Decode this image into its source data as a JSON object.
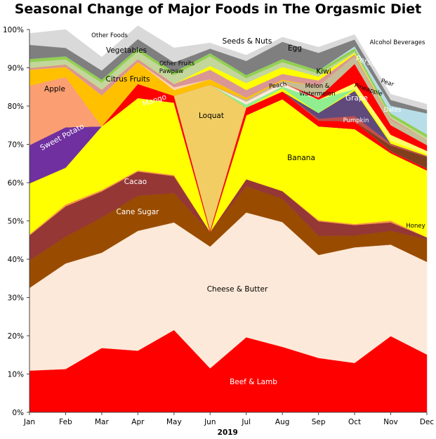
{
  "chart_data": {
    "type": "area",
    "stacked": true,
    "title": "Seasonal Change of Major Foods in The Orgasmic Diet",
    "xlabel": "2019",
    "ylabel": "",
    "categories": [
      "Jan",
      "Feb",
      "Mar",
      "Apr",
      "May",
      "Jun",
      "Jul",
      "Aug",
      "Sep",
      "Oct",
      "Nov",
      "Dec"
    ],
    "ylim": [
      0,
      100
    ],
    "yticks": [
      "0%",
      "10%",
      "20%",
      "30%",
      "40%",
      "50%",
      "60%",
      "70%",
      "80%",
      "90%",
      "100%"
    ],
    "grid": false,
    "legend": "none (inline labels)",
    "series": [
      {
        "name": "Beef & Lamb",
        "color": "#ff0000",
        "label_color": "#ffffff",
        "values": [
          10.9,
          11.3,
          16.8,
          16.1,
          21.5,
          11.5,
          19.6,
          17.1,
          14.2,
          12.9,
          19.9,
          15.1
        ]
      },
      {
        "name": "Cheese & Butter",
        "color": "#fde9d9",
        "label_color": "#000000",
        "values": [
          21.6,
          27.6,
          24.9,
          31.3,
          28.1,
          31.8,
          32.6,
          32.6,
          26.9,
          30.2,
          23.9,
          24.2
        ]
      },
      {
        "name": "Cane Sugar",
        "color": "#994c00",
        "label_color": "#ffffff",
        "values": [
          7.2,
          7.0,
          9.2,
          9.2,
          7.7,
          3.7,
          6.9,
          6.1,
          5.0,
          3.1,
          3.6,
          5.9
        ]
      },
      {
        "name": "Cacao",
        "color": "#953735",
        "label_color": "#ffffff",
        "values": [
          6.5,
          7.9,
          6.8,
          6.3,
          4.4,
          0.1,
          1.8,
          2.0,
          3.8,
          2.7,
          2.2,
          0.5
        ]
      },
      {
        "name": "Honey",
        "color": "#f79646",
        "label_color": "#000000",
        "values": [
          0.3,
          0.5,
          0.4,
          0.3,
          0.3,
          0,
          0,
          0,
          0.3,
          0.3,
          0.5,
          0
        ]
      },
      {
        "name": "Banana",
        "color": "#ffff00",
        "label_color": "#000000",
        "values": [
          13.3,
          9.6,
          16.6,
          18.9,
          18.9,
          0,
          16.7,
          24.0,
          24.5,
          24.8,
          17.6,
          17.5
        ]
      },
      {
        "name": "Sweet Potato",
        "color": "#7030a0",
        "label_color": "#ffffff",
        "values": [
          10.0,
          10.6,
          0,
          0,
          0,
          0,
          0,
          0,
          0,
          0,
          0,
          0
        ]
      },
      {
        "name": "Mango",
        "color": "#ff0000",
        "label_color": "#ffffff",
        "values": [
          0,
          0,
          0,
          3.7,
          1.8,
          0.5,
          2.0,
          2.0,
          1.5,
          2.0,
          0.5,
          0.5
        ]
      },
      {
        "name": "Loquat",
        "color": "#f2cd64",
        "label_color": "#000000",
        "values": [
          0,
          0,
          0,
          0,
          0,
          38.0,
          0,
          0,
          0,
          0,
          0,
          0
        ]
      },
      {
        "name": "Dates",
        "color": "#7f3f1e",
        "label_color": "#ffffff",
        "values": [
          0,
          0,
          0,
          0,
          0,
          0,
          0,
          0,
          0,
          0,
          1.5,
          3.0
        ]
      },
      {
        "name": "Pumpkin",
        "color": "#c0504d",
        "label_color": "#ffffff",
        "values": [
          0,
          0,
          0,
          0,
          0,
          0,
          0,
          0,
          0.5,
          1.4,
          0.5,
          0.3
        ]
      },
      {
        "name": "Grape",
        "color": "#604a7b",
        "label_color": "#ffffff",
        "values": [
          0,
          0,
          0,
          0,
          0,
          0,
          0,
          0,
          1.5,
          6.6,
          0,
          0
        ]
      },
      {
        "name": "Pineapple",
        "color": "#ffff00",
        "label_color": "#000000",
        "values": [
          0,
          0,
          0,
          0,
          0,
          0,
          0,
          0.8,
          0,
          0.5,
          0.8,
          0.5
        ]
      },
      {
        "name": "Melon & Watermelon",
        "color": "#90ee90",
        "label_color": "#000000",
        "values": [
          0,
          0,
          0,
          0,
          0,
          0,
          0.8,
          0.5,
          3.5,
          0,
          0,
          0
        ]
      },
      {
        "name": "Peach",
        "color": "#fde9d9",
        "label_color": "#000000",
        "values": [
          0,
          0,
          0,
          0,
          0,
          0,
          0.8,
          1.0,
          0,
          0,
          0,
          0
        ]
      },
      {
        "name": "Pear",
        "color": "#ffff66",
        "label_color": "#000000",
        "values": [
          0,
          0,
          0,
          0,
          0,
          0,
          0,
          0,
          0,
          1.5,
          1.5,
          0.8
        ]
      },
      {
        "name": "Persimmon",
        "color": "#ff0000",
        "label_color": "#ffffff",
        "values": [
          0,
          0,
          0,
          0,
          0,
          0,
          0,
          0,
          0.5,
          5.0,
          2.5,
          1.5
        ]
      },
      {
        "name": "Kiwi",
        "color": "#c4bd97",
        "label_color": "#000000",
        "values": [
          0,
          0,
          0,
          0,
          0,
          0,
          0.5,
          0.5,
          3.0,
          2.0,
          1.3,
          1.5
        ]
      },
      {
        "name": "Apple",
        "color": "#fb9e72",
        "label_color": "#000000",
        "values": [
          15.5,
          13.1,
          0,
          0,
          0,
          0,
          0,
          0,
          0,
          0,
          0,
          0
        ]
      },
      {
        "name": "Citrus Fruits",
        "color": "#ffc000",
        "label_color": "#000000",
        "values": [
          4.2,
          2.6,
          8.1,
          5.7,
          1.5,
          0,
          0.5,
          0.3,
          0,
          0,
          0,
          0
        ]
      },
      {
        "name": "Other Fruits",
        "color": "#ffc000",
        "label_color": "#000000",
        "values": [
          0,
          0,
          0,
          0,
          0,
          1.4,
          0,
          0,
          0,
          0,
          0,
          0
        ]
      },
      {
        "name": "Pawpaw",
        "color": "#fbd5b5",
        "label_color": "#000000",
        "values": [
          0,
          0,
          0,
          0,
          0.7,
          0,
          0,
          0,
          0,
          0,
          0,
          0
        ]
      },
      {
        "name": "Other Fruits",
        "color": "#d99694",
        "label_color": "#000000",
        "values": [
          0.5,
          0.7,
          1.5,
          0.8,
          0.9,
          2.5,
          2.0,
          1.5,
          1.5,
          0.5,
          0.5,
          0
        ]
      },
      {
        "name": "Egg",
        "color": "#ffff00",
        "label_color": "#000000",
        "values": [
          0,
          0,
          0,
          0,
          0,
          1.0,
          1.8,
          1.8,
          1.0,
          0.4,
          0,
          0
        ]
      },
      {
        "name": "Vegetables",
        "color": "#c3d69b",
        "label_color": "#000000",
        "values": [
          1.5,
          1.3,
          1.8,
          2.0,
          2.3,
          2.5,
          1.3,
          1.3,
          0.8,
          0.4,
          0.5,
          0.5
        ]
      },
      {
        "name": "Vegetables",
        "color": "#92d050",
        "label_color": "#000000",
        "values": [
          0.8,
          0.8,
          0.8,
          0.8,
          0.8,
          0.8,
          0.8,
          0.8,
          0.8,
          0.8,
          0.8,
          0.8
        ]
      },
      {
        "name": "Alcohol Beverages",
        "color": "#b7dee8",
        "label_color": "#000000",
        "values": [
          0,
          0,
          0,
          0,
          0,
          0,
          0,
          0,
          0,
          0.5,
          2.0,
          5.5
        ]
      },
      {
        "name": "Seeds & Nuts",
        "color": "#7f7f7f",
        "label_color": "#000000",
        "values": [
          3.7,
          2.2,
          2.4,
          2.4,
          2.5,
          1.2,
          3.7,
          4.5,
          4.6,
          1.8,
          1.5,
          0.9
        ]
      },
      {
        "name": "Other Foods",
        "color": "#d9d9d9",
        "label_color": "#000000",
        "values": [
          3.0,
          4.8,
          3.5,
          3.5,
          3.8,
          1.5,
          1.5,
          1.2,
          1.5,
          1.3,
          1.5,
          1.5
        ]
      }
    ],
    "labels": [
      {
        "text": "Other Foods",
        "series": "Other Foods"
      },
      {
        "text": "Vegetables",
        "series": "Vegetables"
      },
      {
        "text": "Other Fruits",
        "series": "Other Fruits"
      },
      {
        "text": "Pawpaw",
        "series": "Pawpaw"
      },
      {
        "text": "Seeds & Nuts",
        "series": "Seeds & Nuts"
      },
      {
        "text": "Egg",
        "series": "Egg"
      },
      {
        "text": "Alcohol Beverages",
        "series": "Alcohol Beverages"
      },
      {
        "text": "Apple",
        "series": "Apple"
      },
      {
        "text": "Citrus Fruits",
        "series": "Citrus Fruits"
      },
      {
        "text": "Mango",
        "series": "Mango"
      },
      {
        "text": "Persimmon",
        "series": "Persimmon"
      },
      {
        "text": "Kiwi",
        "series": "Kiwi"
      },
      {
        "text": "Pear",
        "series": "Pear"
      },
      {
        "text": "Peach",
        "series": "Peach"
      },
      {
        "text": "Melon &",
        "series": "Melon & Watermelon"
      },
      {
        "text": "Watermelon",
        "series": "Melon & Watermelon"
      },
      {
        "text": "Pineapple",
        "series": "Pineapple"
      },
      {
        "text": "Grape",
        "series": "Grape"
      },
      {
        "text": "Dates",
        "series": "Dates"
      },
      {
        "text": "Pumpkin",
        "series": "Pumpkin"
      },
      {
        "text": "Loquat",
        "series": "Loquat"
      },
      {
        "text": "Sweet Potato",
        "series": "Sweet Potato"
      },
      {
        "text": "Banana",
        "series": "Banana"
      },
      {
        "text": "Cacao",
        "series": "Cacao"
      },
      {
        "text": "Cane Sugar",
        "series": "Cane Sugar"
      },
      {
        "text": "Honey",
        "series": "Honey"
      },
      {
        "text": "Cheese & Butter",
        "series": "Cheese & Butter"
      },
      {
        "text": "Beef & Lamb",
        "series": "Beef & Lamb"
      }
    ]
  }
}
